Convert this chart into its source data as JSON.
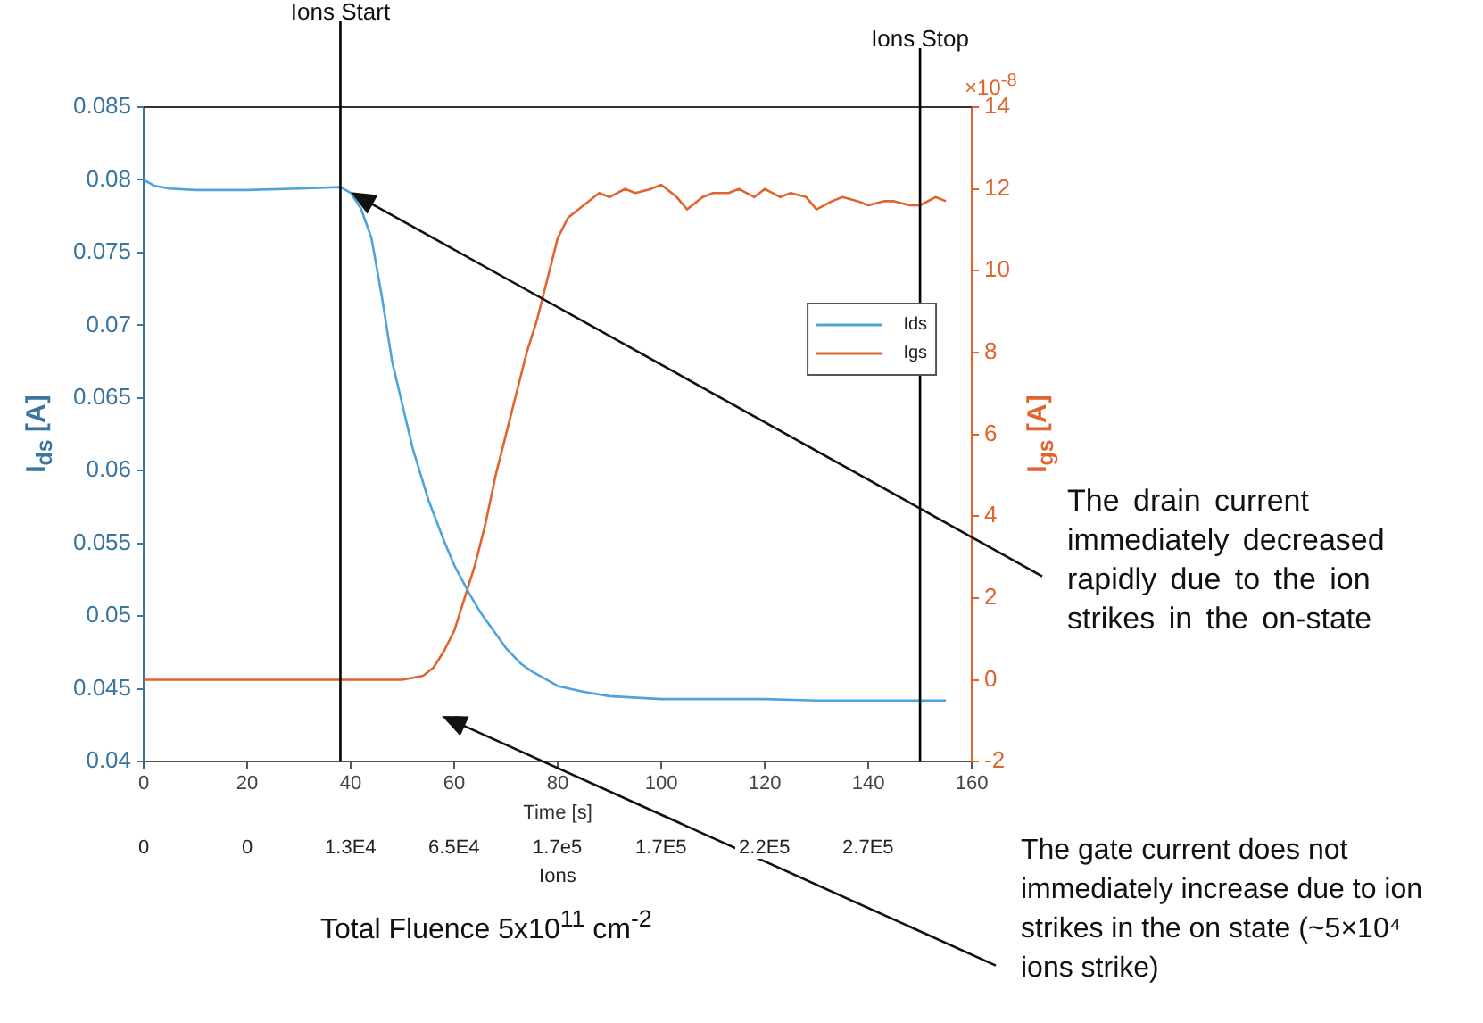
{
  "chart_data": {
    "type": "line",
    "xlabel": "Time [s]",
    "ylabel": "I$_{ds}$ [A]",
    "y2label": "I$_{gs}$ [A]",
    "xlim": [
      0,
      160
    ],
    "xticks": [
      0,
      20,
      40,
      60,
      80,
      100,
      120,
      140,
      160
    ],
    "ylim": [
      0.04,
      0.085
    ],
    "yticks": [
      0.04,
      0.045,
      0.05,
      0.055,
      0.06,
      0.065,
      0.07,
      0.075,
      0.08,
      0.085
    ],
    "y2lim": [
      -2,
      14
    ],
    "y2ticks": [
      -2,
      0,
      2,
      4,
      6,
      8,
      10,
      12,
      14
    ],
    "marker": "none",
    "legend": "center right",
    "series": [
      {
        "name": "Ids",
        "color": "#4fa3dc",
        "x": [
          0,
          2,
          5,
          10,
          20,
          30,
          38,
          40,
          42,
          44,
          46,
          48,
          50,
          52,
          55,
          58,
          60,
          63,
          65,
          68,
          70,
          73,
          75,
          78,
          80,
          85,
          90,
          100,
          110,
          120,
          130,
          140,
          150,
          155
        ],
        "values": [
          0.08,
          0.0796,
          0.0794,
          0.0793,
          0.0793,
          0.0794,
          0.0795,
          0.0791,
          0.078,
          0.076,
          0.072,
          0.0675,
          0.0645,
          0.0615,
          0.058,
          0.0552,
          0.0535,
          0.0515,
          0.0503,
          0.0488,
          0.0478,
          0.0467,
          0.0462,
          0.0456,
          0.0452,
          0.0448,
          0.0445,
          0.0443,
          0.0443,
          0.0443,
          0.0442,
          0.0442,
          0.0442,
          0.0442
        ]
      },
      {
        "name": "Igs",
        "color": "#e0642e",
        "axis": "y2",
        "x": [
          0,
          20,
          40,
          50,
          54,
          56,
          58,
          60,
          62,
          64,
          66,
          68,
          70,
          72,
          74,
          76,
          78,
          80,
          82,
          85,
          88,
          90,
          93,
          95,
          98,
          100,
          103,
          105,
          108,
          110,
          113,
          115,
          118,
          120,
          123,
          125,
          128,
          130,
          133,
          135,
          138,
          140,
          143,
          145,
          148,
          150,
          153,
          155
        ],
        "values": [
          0,
          0,
          0,
          0,
          0.1,
          0.3,
          0.7,
          1.2,
          2.0,
          2.8,
          3.8,
          5.0,
          6.0,
          7.0,
          8.0,
          8.8,
          9.8,
          10.8,
          11.3,
          11.6,
          11.9,
          11.8,
          12.0,
          11.9,
          12.0,
          12.1,
          11.8,
          11.5,
          11.8,
          11.9,
          11.9,
          12.0,
          11.8,
          12.0,
          11.8,
          11.9,
          11.8,
          11.5,
          11.7,
          11.8,
          11.7,
          11.6,
          11.7,
          11.7,
          11.6,
          11.6,
          11.8,
          11.7
        ]
      }
    ],
    "ref_lines": [
      {
        "axis": "x",
        "value": 38,
        "label": "Ions Start",
        "color": "#000000"
      },
      {
        "axis": "x",
        "value": 150,
        "label": "Ions Stop",
        "color": "#000000"
      }
    ],
    "annotations": [
      "×10$^{-8}$",
      "The drain current immediately decreased rapidly due to the ion strikes in the on-state",
      "0",
      "0",
      "1.3E4",
      "6.5E4",
      "1.7e5",
      "1.7E5",
      "2.2E5",
      "2.7E5",
      "Ions",
      "Total Fluence 5x10$^{11}$ cm$^{-2}$",
      "The gate current does not immediately increase due to ion strikes in the on state (~5×10⁴ ions strike)"
    ]
  }
}
